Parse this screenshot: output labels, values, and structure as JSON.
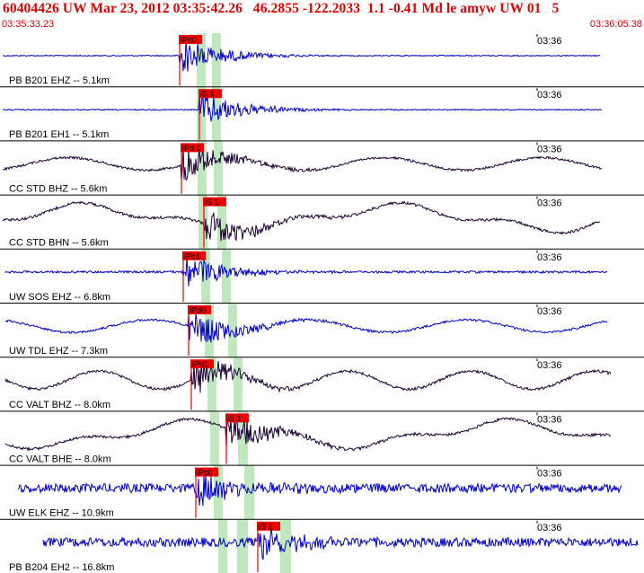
{
  "header": {
    "title": "60404426 UW Mar 23, 2012 03:35:42.26   46.2855 -122.2033  1.1 -0.41 Md le amyw UW 01   5",
    "start_time": "03:35:33.23",
    "end_time": "03:36:05.38"
  },
  "colors": {
    "header_text": "#e00000",
    "trace_blue": "#0000cc",
    "trace_dark": "#1a0033",
    "pick_box": "#ee0000",
    "window_band": "#bfe8bf",
    "separator": "#000000"
  },
  "chart_data": {
    "type": "line",
    "title": "60404426 UW Mar 23, 2012 03:35:42.26   46.2855 -122.2033  1.1 -0.41 Md le amyw UW 01   5",
    "x_start": "03:35:33.23",
    "x_end": "03:36:05.38",
    "minute_tick_label": "03:36",
    "traces": [
      {
        "label": "PB B201 EHZ -- 5.1km",
        "color": "blue",
        "pick": "iPc0",
        "style": "quiet"
      },
      {
        "label": "PB B201 EH1 -- 5.1km",
        "color": "blue",
        "pick": "iS 1",
        "style": "quiet"
      },
      {
        "label": "CC STD BHZ -- 5.6km",
        "color": "dark",
        "pick": "iPd 1",
        "style": "wave"
      },
      {
        "label": "CC STD BHN -- 5.6km",
        "color": "dark",
        "pick": "iS 1",
        "style": "longwave"
      },
      {
        "label": "UW SOS EHZ -- 6.8km",
        "color": "blue",
        "pick": "iPc1",
        "style": "spiky"
      },
      {
        "label": "UW TDL EHZ -- 7.3km",
        "color": "blue",
        "pick": "iPd0",
        "style": "wave"
      },
      {
        "label": "CC VALT BHZ -- 8.0km",
        "color": "dark",
        "pick": "iPd1",
        "style": "bigwave"
      },
      {
        "label": "CC VALT BHE -- 8.0km",
        "color": "dark",
        "pick": "iS 1",
        "style": "longwave"
      },
      {
        "label": "UW ELK EHZ -- 10.9km",
        "color": "blue",
        "pick": "iPc0",
        "style": "noisy"
      },
      {
        "label": "PB B204 EH2 -- 16.8km",
        "color": "blue",
        "pick": "iS 1",
        "style": "noisy"
      }
    ]
  }
}
